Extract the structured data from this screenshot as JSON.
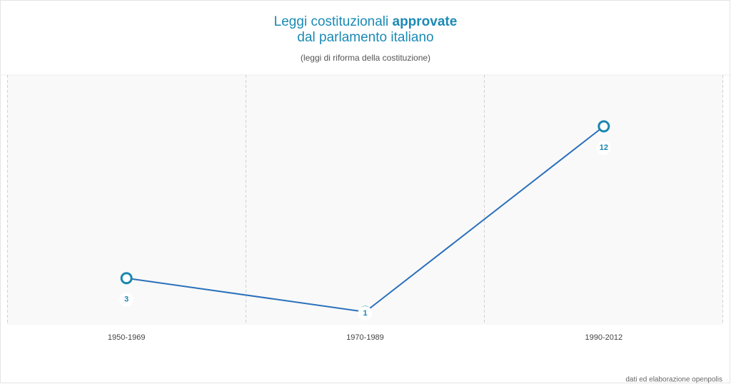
{
  "chart_data": {
    "type": "line",
    "title": [
      "Leggi costituzionali",
      "approvate",
      "dal parlamento italiano"
    ],
    "subtitle": "(leggi di riforma della costituzione)",
    "source": "dati ed elaborazione openpolis",
    "categories": [
      "1950-1969",
      "1970-1989",
      "1990-2012"
    ],
    "values": [
      3,
      1,
      12
    ],
    "color": "#2a70bb",
    "marker_color": "#1a86b0"
  }
}
